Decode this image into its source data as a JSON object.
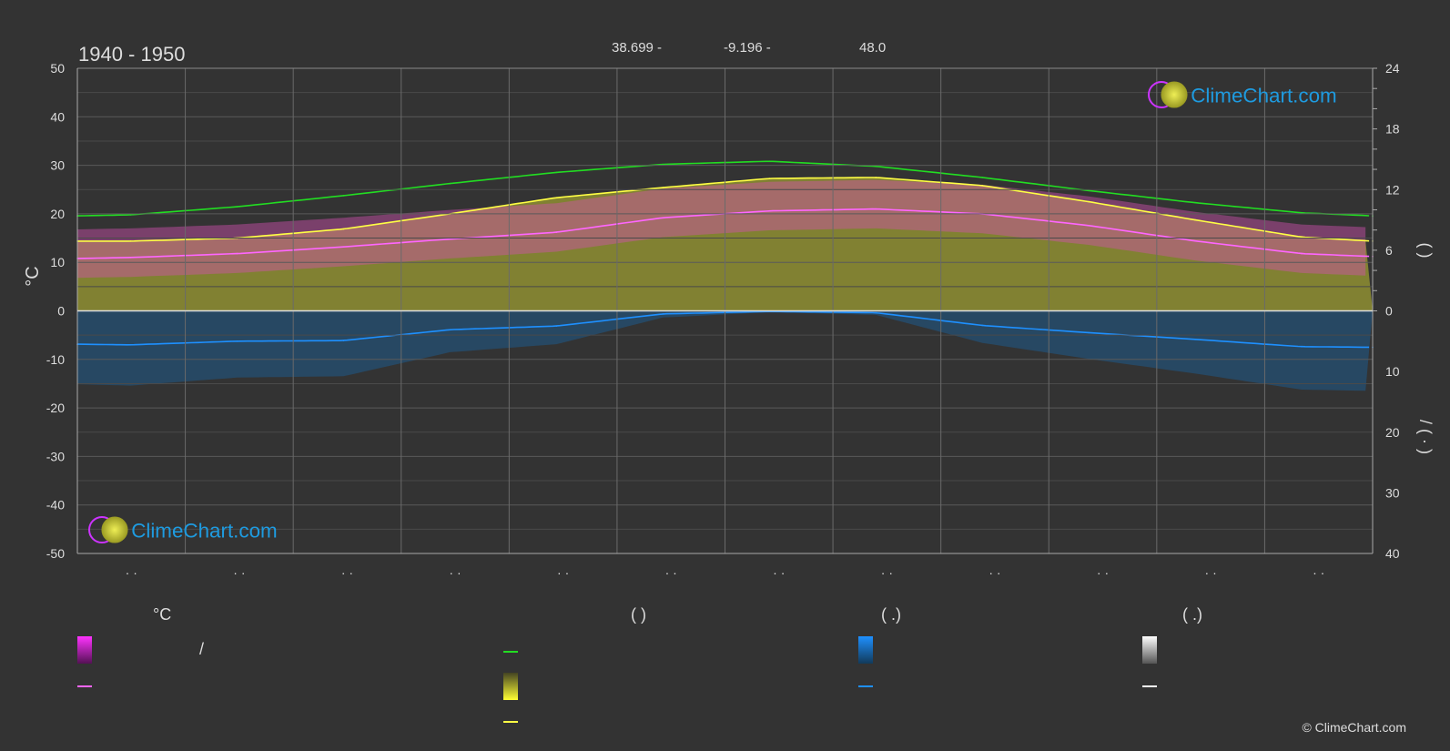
{
  "title": "1940 - 1950",
  "coords": {
    "lat": "38.699 -",
    "lon": "-9.196 -",
    "elev": "48.0"
  },
  "brand": {
    "logo_text": "ClimeChart.com",
    "copyright": "© ClimeChart.com",
    "text_color": "#1e9be0"
  },
  "chart_data": {
    "type": "area",
    "months": [
      "· ·",
      "· ·",
      "· ·",
      "· ·",
      "· ·",
      "· ·",
      "· ·",
      "· ·",
      "· ·",
      "· ·",
      "· ·",
      "· ·"
    ],
    "y_left": {
      "label": "°C",
      "range": [
        -50,
        50
      ],
      "ticks": [
        50,
        40,
        30,
        20,
        10,
        0,
        -10,
        -20,
        -30,
        -40,
        -50
      ]
    },
    "y_right_top": {
      "label": "(   )",
      "range": [
        0,
        24
      ],
      "ticks": [
        24,
        18,
        12,
        6,
        0
      ]
    },
    "y_right_bottom": {
      "label": "/ (   ·   )",
      "range": [
        0,
        40
      ],
      "ticks": [
        0,
        10,
        20,
        30,
        40
      ]
    },
    "x_days": [
      0,
      15,
      45,
      75,
      105,
      135,
      165,
      195,
      225,
      255,
      285,
      315,
      345,
      365
    ],
    "series": [
      {
        "name": "",
        "color": "#22dd22",
        "unit": "h",
        "axis": "right_top",
        "values": [
          9.4,
          9.5,
          10.3,
          11.4,
          12.6,
          13.7,
          14.5,
          14.8,
          14.3,
          13.2,
          11.9,
          10.7,
          9.7,
          9.4
        ]
      },
      {
        "name": "",
        "color": "#ffff44",
        "unit": "h",
        "axis": "right_top",
        "values": [
          6.9,
          6.9,
          7.2,
          8.1,
          9.6,
          11.2,
          12.2,
          13.1,
          13.2,
          12.4,
          10.8,
          9.0,
          7.3,
          6.9
        ]
      },
      {
        "name": "",
        "color": "#ff66ff",
        "unit": "°C",
        "axis": "left",
        "values": [
          10.8,
          11.0,
          11.8,
          13.2,
          14.8,
          16.2,
          19.2,
          20.6,
          21.0,
          20.0,
          17.6,
          14.4,
          11.8,
          11.2
        ]
      },
      {
        "name": "",
        "color": "#1e90ff",
        "unit": "mm",
        "axis": "right_bottom",
        "values": [
          5.5,
          5.6,
          5.0,
          4.9,
          3.1,
          2.5,
          0.5,
          0.1,
          0.3,
          2.4,
          3.6,
          4.7,
          5.9,
          6.0
        ]
      }
    ],
    "grid": true,
    "colors": {
      "sunshine_fill": "#8a8a32",
      "temp_range": "#d050b0",
      "precip_fill": "#1e5a8a",
      "zero_line": "#dddddd"
    }
  },
  "legend": {
    "col1": {
      "head": "°C",
      "item1": "/"
    },
    "col2": {
      "head": "(          )"
    },
    "col3": {
      "head": "(    .)"
    },
    "col4": {
      "head": "(    .)"
    }
  }
}
